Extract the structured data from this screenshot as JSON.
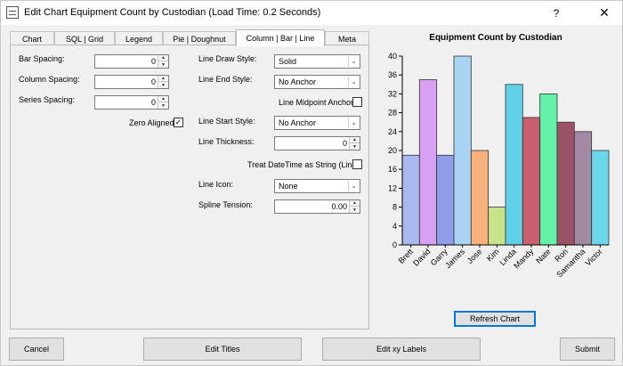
{
  "window": {
    "title": "Edit Chart Equipment Count by Custodian (Load Time: 0.2 Seconds)",
    "help_glyph": "?",
    "close_glyph": "✕"
  },
  "tabs": [
    {
      "label": "Chart"
    },
    {
      "label": "SQL | Grid"
    },
    {
      "label": "Legend"
    },
    {
      "label": "Pie | Doughnut"
    },
    {
      "label": "Column | Bar | Line",
      "active": true
    },
    {
      "label": "Meta"
    }
  ],
  "form": {
    "bar_spacing_label": "Bar Spacing:",
    "bar_spacing_value": "0",
    "column_spacing_label": "Column Spacing:",
    "column_spacing_value": "0",
    "series_spacing_label": "Series Spacing:",
    "series_spacing_value": "0",
    "zero_aligned_label": "Zero Aligned",
    "zero_aligned_checked": true,
    "line_draw_style_label": "Line Draw Style:",
    "line_draw_style_value": "Solid",
    "line_end_style_label": "Line End Style:",
    "line_end_style_value": "No Anchor",
    "line_midpoint_anchors_label": "Line Midpoint Anchors",
    "line_midpoint_anchors_checked": false,
    "line_start_style_label": "Line Start Style:",
    "line_start_style_value": "No Anchor",
    "line_thickness_label": "Line Thickness:",
    "line_thickness_value": "0",
    "treat_datetime_label": "Treat DateTime as String (Line)",
    "treat_datetime_checked": false,
    "line_icon_label": "Line Icon:",
    "line_icon_value": "None",
    "spline_tension_label": "Spline Tension:",
    "spline_tension_value": "0.00"
  },
  "buttons": {
    "refresh_chart": "Refresh Chart",
    "cancel": "Cancel",
    "edit_titles": "Edit Titles",
    "edit_xy_labels": "Edit xy Labels",
    "submit": "Submit"
  },
  "check_glyph": "✓",
  "dropdown_glyph": "⌄",
  "chart_data": {
    "type": "bar",
    "title": "Equipment Count by Custodian",
    "xlabel": "",
    "ylabel": "",
    "ylim": [
      0,
      40
    ],
    "yticks": [
      0,
      4,
      8,
      12,
      16,
      20,
      24,
      28,
      32,
      36,
      40
    ],
    "categories": [
      "Brett",
      "David",
      "Garry",
      "James",
      "Jose",
      "Kim",
      "Linda",
      "Mandy",
      "Nate",
      "Ron",
      "Samantha",
      "Victor"
    ],
    "values": [
      19,
      35,
      19,
      40,
      20,
      8,
      34,
      27,
      32,
      26,
      24,
      20
    ],
    "colors": [
      "#a9b8ef",
      "#d8a0f3",
      "#8f9ee8",
      "#a9d3f3",
      "#f8b07c",
      "#c9e38b",
      "#5fd0e6",
      "#c95f6e",
      "#63f2a7",
      "#9b5267",
      "#a28aa4",
      "#6ad8e8"
    ],
    "grid": false,
    "legend": "none"
  }
}
